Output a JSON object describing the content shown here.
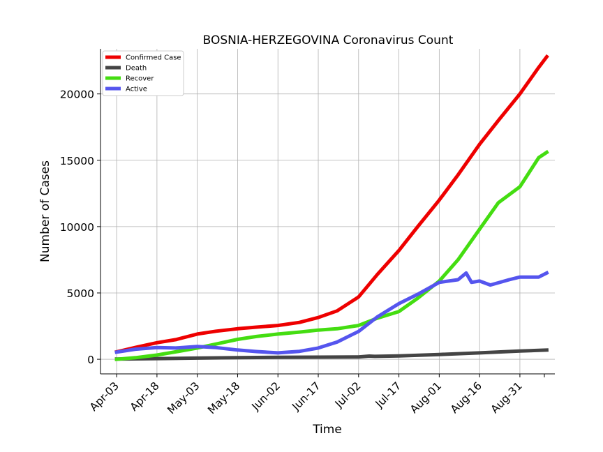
{
  "chart_data": {
    "type": "line",
    "title": "BOSNIA-HERZEGOVINA Coronavirus Count",
    "xlabel": "Time",
    "ylabel": "Number of Cases",
    "xlim": [
      "2020-03-28",
      "2020-09-13"
    ],
    "ylim": [
      -1100,
      23400
    ],
    "grid": true,
    "legend_position": "top-left",
    "x_ticks": [
      "2020-04-03",
      "2020-04-18",
      "2020-05-03",
      "2020-05-18",
      "2020-06-02",
      "2020-06-17",
      "2020-07-02",
      "2020-07-17",
      "2020-08-01",
      "2020-08-16",
      "2020-08-31"
    ],
    "x_tick_labels": [
      "Apr-03",
      "Apr-18",
      "May-03",
      "May-18",
      "Jun-02",
      "Jun-17",
      "Jul-02",
      "Jul-17",
      "Aug-01",
      "Aug-16",
      "Aug-31"
    ],
    "y_ticks": [
      0,
      5000,
      10000,
      15000,
      20000
    ],
    "y_tick_labels": [
      "0",
      "5000",
      "10000",
      "15000",
      "20000"
    ],
    "series": [
      {
        "name": "Confirmed Case",
        "color": "#ee0000",
        "points": [
          [
            "2020-04-03",
            560
          ],
          [
            "2020-04-10",
            900
          ],
          [
            "2020-04-18",
            1250
          ],
          [
            "2020-04-25",
            1480
          ],
          [
            "2020-05-03",
            1900
          ],
          [
            "2020-05-10",
            2120
          ],
          [
            "2020-05-18",
            2300
          ],
          [
            "2020-05-25",
            2420
          ],
          [
            "2020-06-02",
            2550
          ],
          [
            "2020-06-10",
            2780
          ],
          [
            "2020-06-17",
            3150
          ],
          [
            "2020-06-24",
            3650
          ],
          [
            "2020-07-02",
            4700
          ],
          [
            "2020-07-09",
            6400
          ],
          [
            "2020-07-17",
            8200
          ],
          [
            "2020-07-24",
            10000
          ],
          [
            "2020-08-01",
            12000
          ],
          [
            "2020-08-08",
            13900
          ],
          [
            "2020-08-16",
            16200
          ],
          [
            "2020-08-23",
            18000
          ],
          [
            "2020-08-31",
            20000
          ],
          [
            "2020-09-07",
            22000
          ],
          [
            "2020-09-10",
            22800
          ]
        ]
      },
      {
        "name": "Death",
        "color": "#444444",
        "points": [
          [
            "2020-04-03",
            20
          ],
          [
            "2020-04-18",
            50
          ],
          [
            "2020-05-03",
            90
          ],
          [
            "2020-05-18",
            120
          ],
          [
            "2020-06-02",
            150
          ],
          [
            "2020-06-17",
            160
          ],
          [
            "2020-07-02",
            180
          ],
          [
            "2020-07-06",
            240
          ],
          [
            "2020-07-08",
            220
          ],
          [
            "2020-07-17",
            250
          ],
          [
            "2020-08-01",
            360
          ],
          [
            "2020-08-16",
            480
          ],
          [
            "2020-08-31",
            620
          ],
          [
            "2020-09-10",
            700
          ]
        ]
      },
      {
        "name": "Recover",
        "color": "#44dd11",
        "points": [
          [
            "2020-04-03",
            0
          ],
          [
            "2020-04-10",
            120
          ],
          [
            "2020-04-18",
            320
          ],
          [
            "2020-04-25",
            560
          ],
          [
            "2020-05-03",
            850
          ],
          [
            "2020-05-10",
            1150
          ],
          [
            "2020-05-18",
            1500
          ],
          [
            "2020-05-25",
            1720
          ],
          [
            "2020-06-02",
            1900
          ],
          [
            "2020-06-10",
            2050
          ],
          [
            "2020-06-17",
            2200
          ],
          [
            "2020-06-24",
            2300
          ],
          [
            "2020-07-02",
            2550
          ],
          [
            "2020-07-09",
            3100
          ],
          [
            "2020-07-17",
            3600
          ],
          [
            "2020-07-24",
            4600
          ],
          [
            "2020-08-01",
            5900
          ],
          [
            "2020-08-08",
            7500
          ],
          [
            "2020-08-16",
            9800
          ],
          [
            "2020-08-23",
            11800
          ],
          [
            "2020-08-31",
            13000
          ],
          [
            "2020-09-07",
            15200
          ],
          [
            "2020-09-10",
            15600
          ]
        ]
      },
      {
        "name": "Active",
        "color": "#5555ee",
        "points": [
          [
            "2020-04-03",
            540
          ],
          [
            "2020-04-10",
            760
          ],
          [
            "2020-04-18",
            880
          ],
          [
            "2020-04-25",
            850
          ],
          [
            "2020-05-03",
            960
          ],
          [
            "2020-05-10",
            880
          ],
          [
            "2020-05-18",
            700
          ],
          [
            "2020-05-25",
            580
          ],
          [
            "2020-06-02",
            480
          ],
          [
            "2020-06-10",
            600
          ],
          [
            "2020-06-17",
            850
          ],
          [
            "2020-06-24",
            1300
          ],
          [
            "2020-07-02",
            2100
          ],
          [
            "2020-07-09",
            3200
          ],
          [
            "2020-07-17",
            4200
          ],
          [
            "2020-07-24",
            4900
          ],
          [
            "2020-08-01",
            5800
          ],
          [
            "2020-08-08",
            6000
          ],
          [
            "2020-08-11",
            6500
          ],
          [
            "2020-08-13",
            5800
          ],
          [
            "2020-08-16",
            5900
          ],
          [
            "2020-08-20",
            5600
          ],
          [
            "2020-08-27",
            6000
          ],
          [
            "2020-08-31",
            6200
          ],
          [
            "2020-09-07",
            6200
          ],
          [
            "2020-09-10",
            6500
          ]
        ]
      }
    ]
  }
}
